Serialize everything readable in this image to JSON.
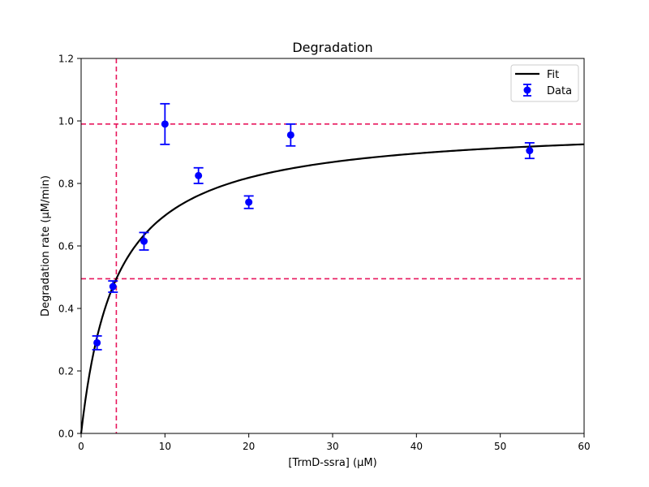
{
  "chart_data": {
    "type": "scatter",
    "title": "Degradation",
    "xlabel": "[TrmD-ssra] (µM)",
    "ylabel": "Degradation rate (µM/min)",
    "xlim": [
      0,
      60
    ],
    "ylim": [
      0,
      1.2
    ],
    "xticks": [
      0,
      10,
      20,
      30,
      40,
      50,
      60
    ],
    "xtick_labels": [
      "0",
      "10",
      "20",
      "30",
      "40",
      "50",
      "60"
    ],
    "yticks": [
      0,
      0.2,
      0.4,
      0.6,
      0.8,
      1.0,
      1.2
    ],
    "ytick_labels": [
      "0.0",
      "0.2",
      "0.4",
      "0.6",
      "0.8",
      "1.0",
      "1.2"
    ],
    "grid": false,
    "legend_position": "top-right",
    "series": [
      {
        "name": "Data",
        "kind": "errorbar",
        "color": "#0000ff",
        "x": [
          1.9,
          3.8,
          7.5,
          10.0,
          14.0,
          20.0,
          25.0,
          53.5
        ],
        "y": [
          0.29,
          0.47,
          0.615,
          0.99,
          0.825,
          0.74,
          0.955,
          0.905
        ],
        "yerr": [
          0.022,
          0.018,
          0.028,
          0.065,
          0.025,
          0.02,
          0.035,
          0.025
        ]
      },
      {
        "name": "Fit",
        "kind": "line",
        "color": "#000000",
        "model": "michaelis-menten",
        "vmax": 0.99,
        "km": 4.2
      }
    ],
    "reference_lines": [
      {
        "orientation": "horizontal",
        "value": 0.99,
        "color": "#e8175d",
        "style": "dashed"
      },
      {
        "orientation": "horizontal",
        "value": 0.495,
        "color": "#e8175d",
        "style": "dashed"
      },
      {
        "orientation": "vertical",
        "value": 4.2,
        "color": "#e8175d",
        "style": "dashed"
      }
    ],
    "legend": [
      {
        "label": "Fit",
        "series": "Fit"
      },
      {
        "label": "Data",
        "series": "Data"
      }
    ]
  }
}
